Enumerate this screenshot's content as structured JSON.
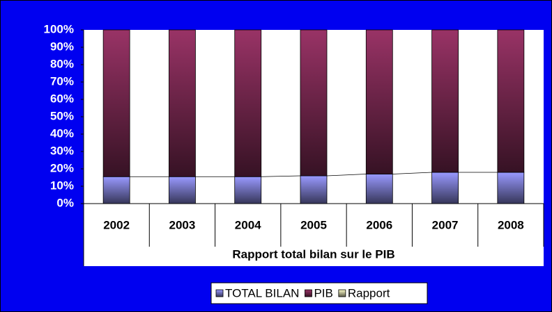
{
  "chart_data": {
    "type": "bar",
    "stacked": true,
    "categories": [
      "2002",
      "2003",
      "2004",
      "2005",
      "2006",
      "2007",
      "2008"
    ],
    "group_label": "Rapport total bilan sur le PIB",
    "series": [
      {
        "name": "TOTAL BILAN",
        "color": "#9999ff",
        "values": [
          15.5,
          15.5,
          15.5,
          16,
          17,
          18,
          18
        ]
      },
      {
        "name": "PIB",
        "color": "#993366",
        "values": [
          84.5,
          84.5,
          84.5,
          84,
          83,
          82,
          82
        ]
      },
      {
        "name": "Rapport",
        "color": "#ffffcc",
        "values": [
          0,
          0,
          0,
          0,
          0,
          0,
          0
        ]
      }
    ],
    "series_lines": true,
    "ylim": [
      0,
      100
    ],
    "yticks": [
      {
        "value": 0,
        "label": "0%"
      },
      {
        "value": 10,
        "label": "10%"
      },
      {
        "value": 20,
        "label": "20%"
      },
      {
        "value": 30,
        "label": "30%"
      },
      {
        "value": 40,
        "label": "40%"
      },
      {
        "value": 50,
        "label": "50%"
      },
      {
        "value": 60,
        "label": "60%"
      },
      {
        "value": 70,
        "label": "70%"
      },
      {
        "value": 80,
        "label": "80%"
      },
      {
        "value": 90,
        "label": "90%"
      },
      {
        "value": 100,
        "label": "100%"
      }
    ],
    "legend": "bottom"
  }
}
